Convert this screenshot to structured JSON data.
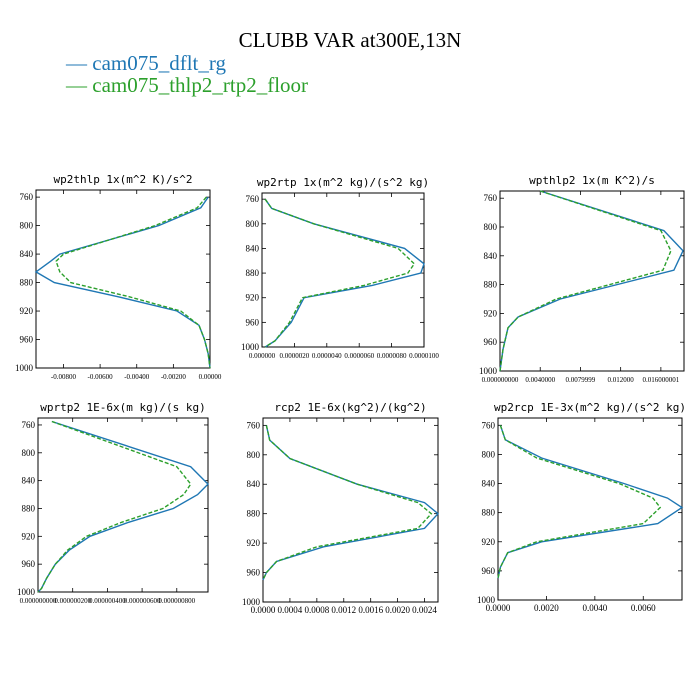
{
  "title": "CLUBB VAR at300E,13N",
  "legend": [
    {
      "name": "cam075_dflt_rg",
      "color": "#1f77b4",
      "dash": "solid"
    },
    {
      "name": "cam075_thlp2_rtp2_floor",
      "color": "#2ca02c",
      "dash": "dashed"
    }
  ],
  "chart_data": [
    {
      "type": "line",
      "title": "wp2thlp  1x(m^2 K)/s^2",
      "ylim": [
        1000,
        750
      ],
      "y_ticks": [
        "760",
        "800",
        "840",
        "880",
        "920",
        "960",
        "1000"
      ],
      "xlim": [
        -0.0095,
        0.0
      ],
      "x_tick_values": [
        -0.008,
        -0.006,
        -0.004,
        -0.002,
        0.0
      ],
      "x_tick_labels": [
        "-0.00800",
        "-0.00600",
        "-0.00400",
        "-0.00200",
        "0.00000"
      ],
      "levels": [
        760,
        775,
        800,
        840,
        850,
        865,
        880,
        900,
        920,
        940,
        960,
        980,
        1000
      ],
      "series": [
        {
          "name": "cam075_dflt_rg",
          "values": [
            -0.0001,
            -0.0005,
            -0.0028,
            -0.0082,
            -0.0087,
            -0.0095,
            -0.0085,
            -0.005,
            -0.0018,
            -0.0006,
            -0.0003,
            -0.0001,
            0.0
          ]
        },
        {
          "name": "cam075_thlp2_rtp2_floor",
          "values": [
            -0.0002,
            -0.0007,
            -0.003,
            -0.008,
            -0.0084,
            -0.0082,
            -0.0076,
            -0.0044,
            -0.0016,
            -0.0006,
            -0.0003,
            -0.0001,
            0.0
          ]
        }
      ]
    },
    {
      "type": "line",
      "title": "wp2rtp  1x(m^2 kg)/(s^2 kg)",
      "ylim": [
        1000,
        750
      ],
      "y_ticks": [
        "760",
        "800",
        "840",
        "880",
        "920",
        "960",
        "1000"
      ],
      "xlim": [
        0.0,
        1e-05
      ],
      "x_tick_values": [
        0.0,
        2e-06,
        4e-06,
        6e-06,
        8e-06,
        1e-05
      ],
      "x_tick_labels": [
        "0.000000",
        "0.0000020",
        "0.0000040",
        "0.0000060",
        "0.0000080",
        "0.0000100"
      ],
      "levels": [
        760,
        775,
        800,
        840,
        865,
        880,
        900,
        920,
        960,
        990,
        1000
      ],
      "series": [
        {
          "name": "cam075_dflt_rg",
          "values": [
            2e-07,
            6e-07,
            3.2e-06,
            8.8e-06,
            1e-05,
            9.8e-06,
            6.8e-06,
            2.6e-06,
            1.8e-06,
            8e-07,
            2e-07
          ]
        },
        {
          "name": "cam075_thlp2_rtp2_floor",
          "values": [
            2e-07,
            6e-07,
            3.2e-06,
            8.4e-06,
            9.4e-06,
            9e-06,
            6.3e-06,
            2.5e-06,
            1.7e-06,
            8e-07,
            2e-07
          ]
        }
      ]
    },
    {
      "type": "line",
      "title": "wpthlp2  1x(m K^2)/s",
      "ylim": [
        1000,
        750
      ],
      "y_ticks": [
        "760",
        "800",
        "840",
        "880",
        "920",
        "960",
        "1000"
      ],
      "xlim": [
        0.0,
        0.0183
      ],
      "x_tick_values": [
        0.0,
        0.004,
        0.008,
        0.012,
        0.016
      ],
      "x_tick_labels": [
        "0.000000000",
        "0.0040000",
        "0.0079999",
        "0.012000",
        "0.016000001"
      ],
      "levels": [
        750,
        805,
        833,
        860,
        900,
        925,
        940,
        970,
        1000
      ],
      "series": [
        {
          "name": "cam075_dflt_rg",
          "values": [
            0.004,
            0.0163,
            0.0182,
            0.0173,
            0.006,
            0.0018,
            0.0008,
            0.0003,
            0.0
          ]
        },
        {
          "name": "cam075_thlp2_rtp2_floor",
          "values": [
            0.004,
            0.016,
            0.017,
            0.0162,
            0.0056,
            0.0018,
            0.0008,
            0.0003,
            0.0
          ]
        }
      ]
    },
    {
      "type": "line",
      "title": "wprtp2  1E-6x(m kg)/(s kg)",
      "ylim": [
        1000,
        750
      ],
      "y_ticks": [
        "760",
        "800",
        "840",
        "880",
        "920",
        "960",
        "1000"
      ],
      "xlim": [
        0.0,
        9.8e-07
      ],
      "x_tick_values": [
        0.0,
        2e-07,
        4e-07,
        6e-07,
        8e-07
      ],
      "x_tick_labels": [
        "0.000000000",
        "0.000000200",
        "0.000000400",
        "0.000000600",
        "0.000000800"
      ],
      "levels": [
        755,
        820,
        845,
        860,
        880,
        900,
        920,
        940,
        960,
        980,
        995,
        1000
      ],
      "series": [
        {
          "name": "cam075_dflt_rg",
          "values": [
            8e-08,
            8.8e-07,
            9.8e-07,
            9.2e-07,
            7.8e-07,
            5.2e-07,
            3e-07,
            1.8e-07,
            1e-07,
            5e-08,
            2e-08,
            0.0
          ]
        },
        {
          "name": "cam075_thlp2_rtp2_floor",
          "values": [
            8e-08,
            8e-07,
            8.8e-07,
            8.4e-07,
            7.2e-07,
            4.8e-07,
            2.8e-07,
            1.7e-07,
            1e-07,
            5e-08,
            2e-08,
            0.0
          ]
        }
      ]
    },
    {
      "type": "line",
      "title": "rcp2  1E-6x(kg^2)/(kg^2)",
      "ylim": [
        1000,
        750
      ],
      "y_ticks": [
        "760",
        "800",
        "840",
        "880",
        "920",
        "960",
        "1000"
      ],
      "xlim": [
        0.0,
        0.0026
      ],
      "x_tick_values": [
        0.0,
        0.0004,
        0.0008,
        0.0012,
        0.0016,
        0.002,
        0.0024
      ],
      "x_tick_labels": [
        "0.0000",
        "0.0004",
        "0.0008",
        "0.0012",
        "0.0016",
        "0.0020",
        "0.0024"
      ],
      "levels": [
        760,
        780,
        805,
        840,
        865,
        880,
        900,
        925,
        945,
        960,
        970
      ],
      "series": [
        {
          "name": "cam075_dflt_rg",
          "values": [
            5e-05,
            0.0001,
            0.0004,
            0.0014,
            0.0024,
            0.0026,
            0.0024,
            0.0009,
            0.0002,
            5e-05,
            0.0
          ]
        },
        {
          "name": "cam075_thlp2_rtp2_floor",
          "values": [
            5e-05,
            0.0001,
            0.0004,
            0.0014,
            0.0023,
            0.0025,
            0.0023,
            0.0008,
            0.0002,
            5e-05,
            0.0
          ]
        }
      ]
    },
    {
      "type": "line",
      "title": "wp2rcp  1E-3x(m^2 kg)/(s^2 kg)",
      "ylim": [
        1000,
        750
      ],
      "y_ticks": [
        "760",
        "800",
        "840",
        "880",
        "920",
        "960",
        "1000"
      ],
      "xlim": [
        0.0,
        0.0076
      ],
      "x_tick_values": [
        0.0,
        0.002,
        0.004,
        0.006
      ],
      "x_tick_labels": [
        "0.0000",
        "0.0020",
        "0.0040",
        "0.0060"
      ],
      "levels": [
        760,
        780,
        805,
        840,
        860,
        873,
        895,
        920,
        935,
        955,
        970
      ],
      "series": [
        {
          "name": "cam075_dflt_rg",
          "values": [
            0.0001,
            0.0003,
            0.0018,
            0.0052,
            0.007,
            0.0076,
            0.0066,
            0.0018,
            0.0004,
            0.0001,
            0.0
          ]
        },
        {
          "name": "cam075_thlp2_rtp2_floor",
          "values": [
            0.0001,
            0.0003,
            0.0016,
            0.005,
            0.0064,
            0.0067,
            0.006,
            0.0016,
            0.0004,
            0.0001,
            0.0
          ]
        }
      ]
    }
  ]
}
